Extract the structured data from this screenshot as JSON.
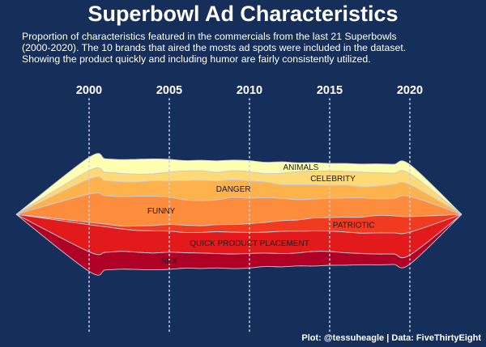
{
  "title": "Superbowl Ad Characteristics",
  "subtitle": [
    "Proportion of characteristics featured in the commercials from the last 21 Superbowls",
    "(2000-2020). The 10 brands that aired the mosts ad spots were included in the dataset.",
    "Showing the product quickly and including humor are fairly consistently utilized."
  ],
  "caption": "Plot: @tessuheagle | Data: FiveThirtyEight",
  "colors": {
    "background": "#152f5a",
    "stream_outline": "#c9c9d6",
    "text": "#ffffff",
    "label_text": "#1a1a1a"
  },
  "chart_data": {
    "type": "area",
    "subtype": "streamgraph",
    "x": [
      2000,
      2001,
      2002,
      2003,
      2004,
      2005,
      2006,
      2007,
      2008,
      2009,
      2010,
      2011,
      2012,
      2013,
      2014,
      2015,
      2016,
      2017,
      2018,
      2019,
      2020
    ],
    "xticks": [
      2000,
      2005,
      2010,
      2015,
      2020
    ],
    "xlim": [
      1995,
      2023
    ],
    "xtick_position": "top",
    "vertical_reference_lines": [
      2000,
      2005,
      2010,
      2015,
      2020
    ],
    "series": [
      {
        "name": "ANIMALS",
        "color": "#ffffb2",
        "values": [
          6.6,
          6.7,
          6.8,
          7.4,
          7.4,
          6.3,
          5.1,
          5.2,
          5.7,
          5.2,
          5.5,
          5.6,
          5.7,
          4.4,
          4.2,
          3.8,
          3.9,
          4.0,
          4.4,
          4.4,
          4.5
        ]
      },
      {
        "name": "CELEBRITY",
        "color": "#fed976",
        "values": [
          4.2,
          4.1,
          4.2,
          3.9,
          3.5,
          4.4,
          4.9,
          4.7,
          4.3,
          4.6,
          4.6,
          4.2,
          5.6,
          6.5,
          6.8,
          7.1,
          6.8,
          7.3,
          6.6,
          5.5,
          5.5
        ]
      },
      {
        "name": "DANGER",
        "color": "#feb24c",
        "values": [
          7.4,
          7.5,
          7.3,
          7.0,
          7.6,
          8.0,
          9.5,
          10.0,
          9.3,
          8.7,
          8.5,
          7.7,
          6.8,
          7.3,
          7.0,
          6.4,
          6.4,
          5.5,
          6.3,
          7.0,
          5.8
        ]
      },
      {
        "name": "FUNNY",
        "color": "#fd8d3c",
        "values": [
          13.9,
          14.0,
          14.6,
          14.7,
          14.5,
          13.5,
          12.5,
          12.5,
          12.3,
          13.4,
          12.6,
          12.2,
          11.0,
          10.1,
          9.4,
          9.5,
          9.5,
          9.5,
          8.2,
          8.6,
          10.0
        ]
      },
      {
        "name": "PATRIOTIC",
        "color": "#f03b20",
        "values": [
          1.2,
          1.3,
          1.4,
          2.2,
          2.6,
          3.3,
          3.6,
          3.3,
          3.5,
          3.8,
          4.3,
          4.9,
          5.2,
          5.5,
          6.4,
          6.7,
          7.3,
          7.9,
          8.6,
          8.4,
          7.7
        ]
      },
      {
        "name": "QUICK PRODUCT PLACEMENT",
        "color": "#e31a1c",
        "values": [
          13.4,
          12.7,
          11.1,
          10.8,
          11.0,
          10.4,
          10.0,
          10.2,
          10.8,
          10.8,
          10.4,
          10.3,
          11.1,
          10.8,
          10.1,
          10.1,
          10.3,
          10.1,
          10.5,
          10.5,
          11.3
        ]
      },
      {
        "name": "SEX",
        "color": "#b10026",
        "values": [
          9.7,
          8.7,
          8.8,
          8.5,
          8.3,
          8.5,
          7.6,
          7.6,
          7.1,
          7.2,
          7.2,
          6.6,
          6.5,
          6.4,
          7.2,
          6.8,
          6.1,
          5.5,
          5.3,
          5.1,
          4.5
        ]
      }
    ]
  }
}
